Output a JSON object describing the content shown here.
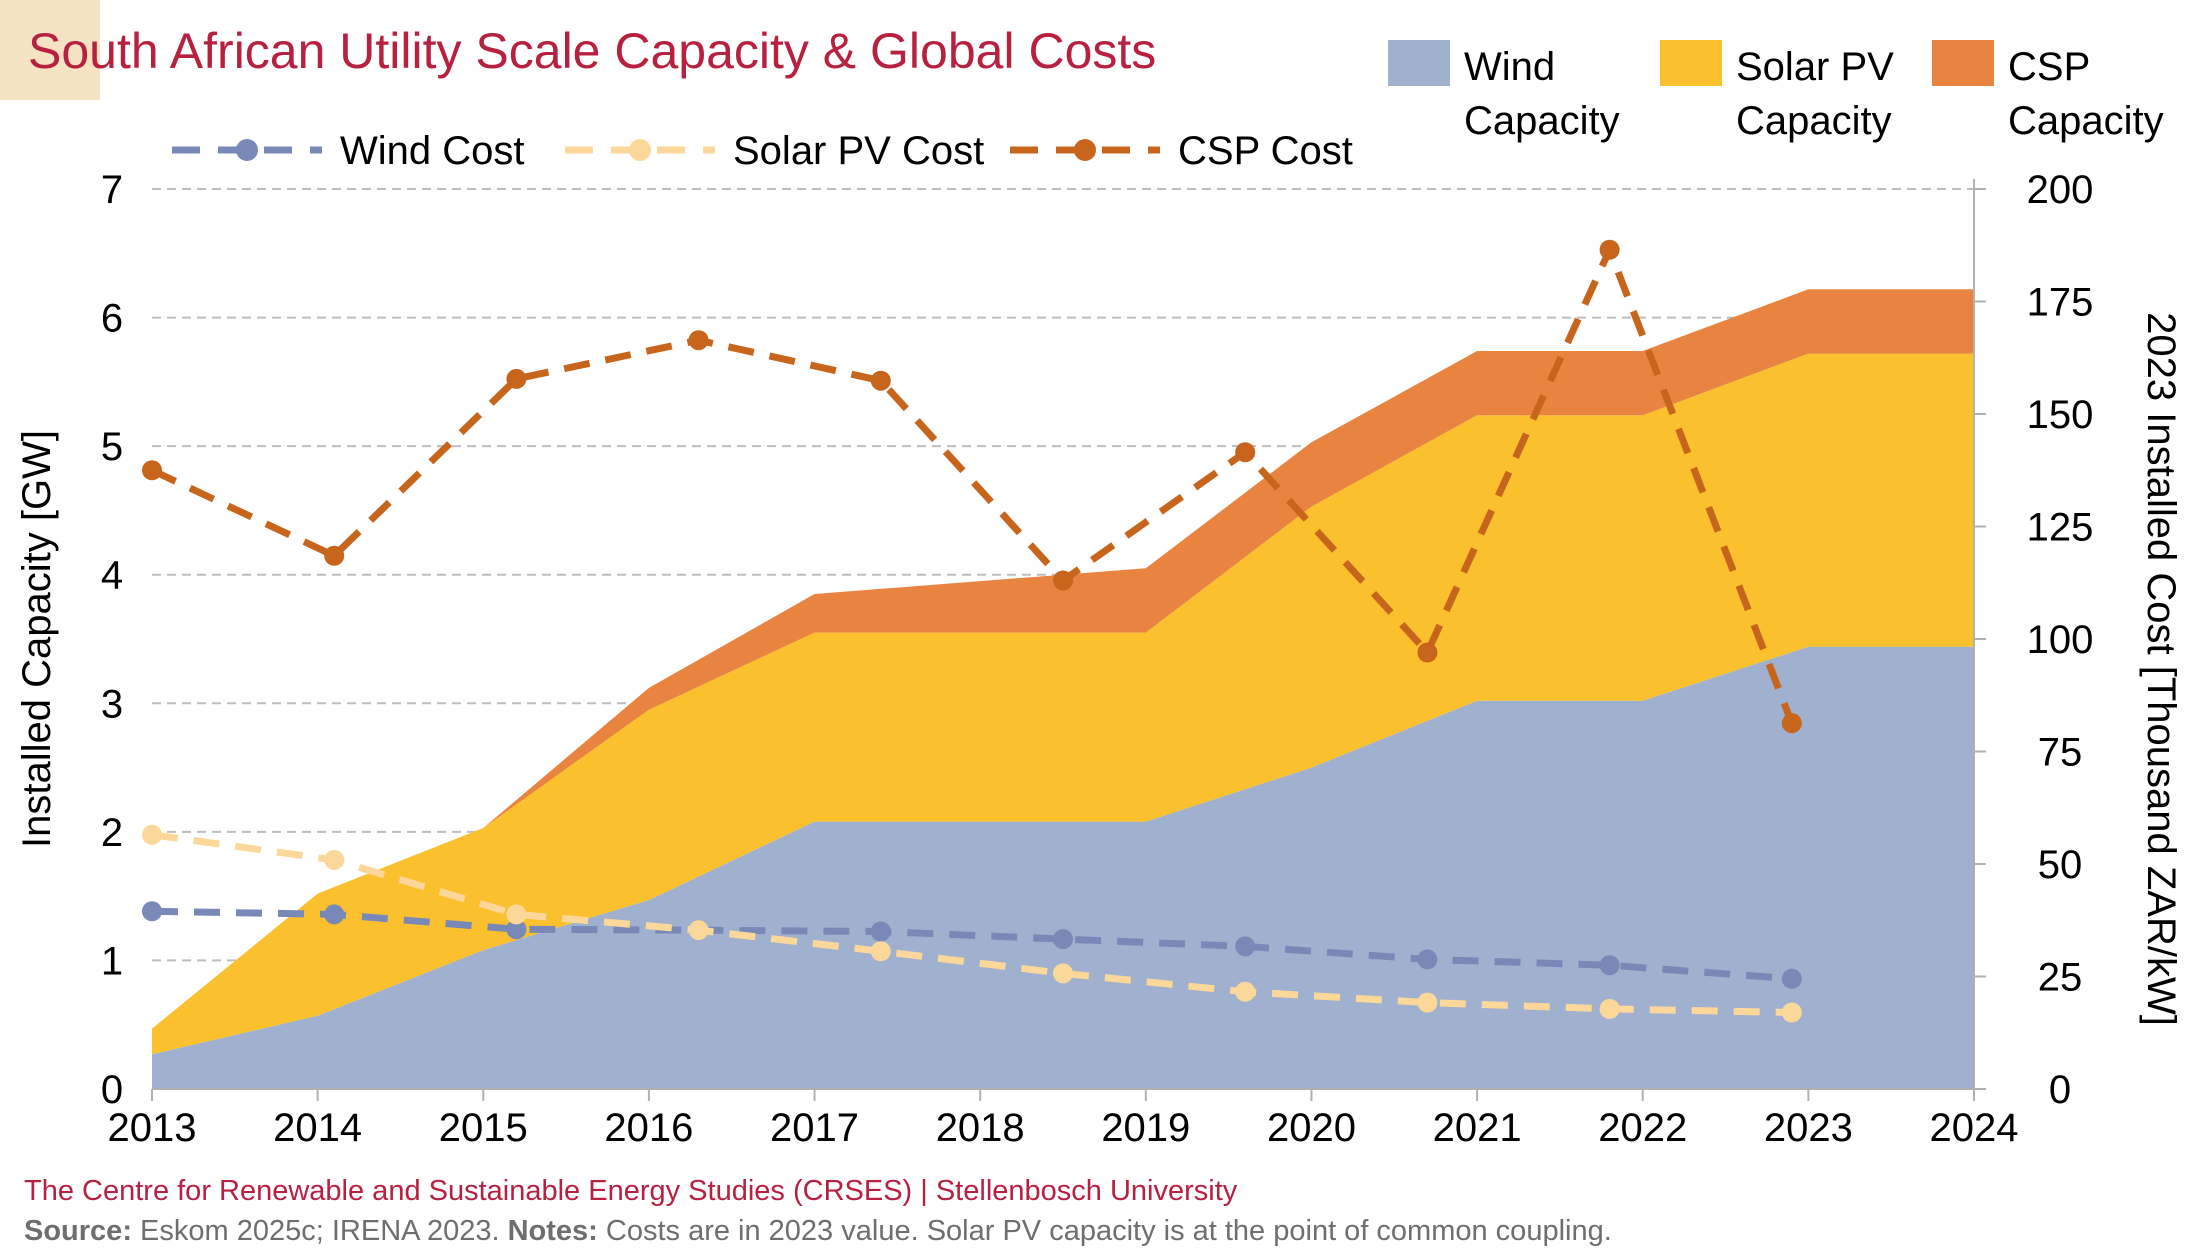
{
  "title": "South African Utility Scale Capacity & Global Costs",
  "footer": {
    "organization": "The Centre for Renewable and Sustainable Energy Studies (CRSES) | Stellenbosch University",
    "source_label": "Source:",
    "source_text": "Eskom 2025c; IRENA 2023.",
    "notes_label": "Notes:",
    "notes_text": "Costs are in 2023 value. Solar PV capacity is at the point of common coupling."
  },
  "chart_data": {
    "type": "area",
    "x_ticks": [
      "2013",
      "2014",
      "2015",
      "2016",
      "2017",
      "2018",
      "2019",
      "2020",
      "2021",
      "2022",
      "2023",
      "2024"
    ],
    "xlim": [
      2013,
      2024
    ],
    "ylabel_left": "Installed Capacity [GW]",
    "ylim_left": [
      0,
      7
    ],
    "yticks_left": [
      "0",
      "1",
      "2",
      "3",
      "4",
      "5",
      "6",
      "7"
    ],
    "ylabel_right": "2023 Installed Cost [Thousand ZAR/kW]",
    "ylim_right": [
      0,
      200
    ],
    "yticks_right": [
      "0",
      "25",
      "50",
      "75",
      "100",
      "125",
      "150",
      "175",
      "200"
    ],
    "grid": "horizontal dashed",
    "legend_position": "top",
    "area_series": [
      {
        "name": "Wind Capacity",
        "color": "#a0b1cf",
        "x": [
          2013,
          2014,
          2015,
          2016,
          2017,
          2018,
          2019,
          2020,
          2021,
          2022,
          2023,
          2024
        ],
        "values": [
          0.27,
          0.57,
          1.08,
          1.47,
          2.08,
          2.08,
          2.08,
          2.5,
          3.02,
          3.02,
          3.44,
          3.44
        ]
      },
      {
        "name": "Solar PV Capacity",
        "color": "#fbc02d",
        "x": [
          2013,
          2014,
          2015,
          2016,
          2017,
          2018,
          2019,
          2020,
          2021,
          2022,
          2023,
          2024
        ],
        "values": [
          0.2,
          0.95,
          0.95,
          1.48,
          1.47,
          1.47,
          1.47,
          2.03,
          2.22,
          2.22,
          2.28,
          2.28
        ]
      },
      {
        "name": "CSP Capacity",
        "color": "#e98440",
        "x": [
          2013,
          2014,
          2015,
          2016,
          2017,
          2018,
          2019,
          2020,
          2021,
          2022,
          2023,
          2024
        ],
        "values": [
          0,
          0,
          0,
          0.17,
          0.3,
          0.4,
          0.5,
          0.5,
          0.5,
          0.5,
          0.5,
          0.5
        ]
      }
    ],
    "line_series": [
      {
        "name": "Wind Cost",
        "color": "#7889b8",
        "x": [
          2013,
          2014.1,
          2015.2,
          2016.3,
          2017.4,
          2018.5,
          2019.6,
          2020.7,
          2021.8,
          2022.9
        ],
        "values": [
          39.5,
          38.8,
          35.5,
          35.3,
          35.0,
          33.3,
          31.7,
          28.8,
          27.5,
          24.5
        ]
      },
      {
        "name": "Solar PV Cost",
        "color": "#fcd79a",
        "x": [
          2013,
          2014.1,
          2015.2,
          2016.3,
          2017.4,
          2018.5,
          2019.6,
          2020.7,
          2021.8,
          2022.9
        ],
        "values": [
          56.5,
          50.9,
          38.8,
          35.3,
          30.6,
          25.7,
          21.6,
          19.2,
          17.8,
          17.0
        ]
      },
      {
        "name": "CSP Cost",
        "color": "#c8651d",
        "x": [
          2013,
          2014.1,
          2015.2,
          2016.3,
          2017.4,
          2018.5,
          2019.6,
          2020.7,
          2021.8,
          2022.9
        ],
        "values": [
          137.5,
          118.5,
          157.8,
          166.4,
          157.4,
          113.0,
          141.5,
          97.0,
          186.5,
          81.3
        ]
      }
    ]
  }
}
